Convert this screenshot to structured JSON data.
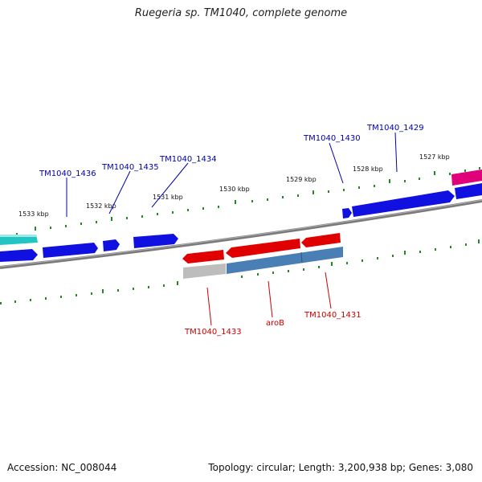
{
  "title": "Ruegeria sp. TM1040, complete genome",
  "footer": {
    "accession": "Accession: NC_008044",
    "summary": "Topology: circular; Length: 3,200,938 bp; Genes: 3,080"
  },
  "ticks": [
    "1533 kbp",
    "1532 kbp",
    "1531 kbp",
    "1530 kbp",
    "1529 kbp",
    "1528 kbp",
    "1527 kbp"
  ],
  "gene_labels": {
    "TM1040_1436": "TM1040_1436",
    "TM1040_1435": "TM1040_1435",
    "TM1040_1434": "TM1040_1434",
    "TM1040_1430": "TM1040_1430",
    "TM1040_1429": "TM1040_1429",
    "TM1040_1433": "TM1040_1433",
    "aroB": "aroB",
    "TM1040_1431": "TM1040_1431"
  },
  "colors": {
    "backbone": "#808080",
    "tick": "#228B22",
    "cds_blue": "#1010e0",
    "cds_red": "#e00000",
    "cds_cyan": "#20c8c8",
    "cds_magenta": "#e0007a",
    "steel": "#4a7fb5",
    "grey": "#b8b8b8",
    "label_blue": "#0000aa",
    "label_red": "#cc0000"
  }
}
